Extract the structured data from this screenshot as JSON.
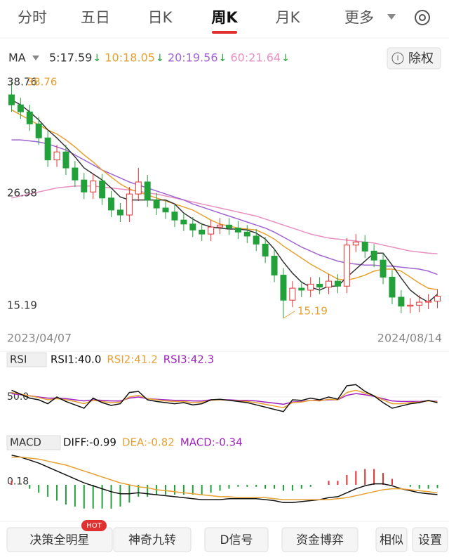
{
  "tabs": {
    "items": [
      "分时",
      "五日",
      "日K",
      "周K",
      "月K",
      "更多"
    ],
    "active": 3
  },
  "ma_legend": {
    "label": "MA",
    "items": [
      {
        "text": "5:17.59",
        "arrow": "↓",
        "color": "#333333"
      },
      {
        "text": "10:18.05",
        "arrow": "↓",
        "color": "#e8a030"
      },
      {
        "text": "20:19.56",
        "arrow": "↓",
        "color": "#a064d2"
      },
      {
        "text": "60:21.64",
        "arrow": "↓",
        "color": "#e890c0"
      }
    ]
  },
  "rights_button": {
    "icon": "i",
    "label": "除权"
  },
  "price_chart": {
    "ylim": [
      15.19,
      38.76
    ],
    "yticks": [
      38.76,
      26.98,
      15.19
    ],
    "high_label": "38.76",
    "low_label": "15.19",
    "dates": [
      "2023/04/07",
      "2024/08/14"
    ],
    "up_color": "#e03030",
    "down_color": "#22a03a",
    "open": [
      37.5,
      36.5,
      35.8,
      34.6,
      33.2,
      31.0,
      31.8,
      30.2,
      29.0,
      27.8,
      28.9,
      27.2,
      26.0,
      25.5,
      27.6,
      28.8,
      27.0,
      26.2,
      25.8,
      25.0,
      24.6,
      24.0,
      23.6,
      24.3,
      24.5,
      24.2,
      23.8,
      23.4,
      22.6,
      21.4,
      19.5,
      17.0,
      18.2,
      18.0,
      18.6,
      18.3,
      18.9,
      18.4,
      22.5,
      22.8,
      21.9,
      21.0,
      19.3,
      17.3,
      16.4,
      16.5,
      16.8,
      16.9
    ],
    "close": [
      36.5,
      35.8,
      34.6,
      33.2,
      31.0,
      31.8,
      30.2,
      29.0,
      27.8,
      28.9,
      27.2,
      26.0,
      25.5,
      27.6,
      28.8,
      27.0,
      26.2,
      25.8,
      25.0,
      24.6,
      24.0,
      23.6,
      24.3,
      24.5,
      24.2,
      23.8,
      23.4,
      22.6,
      21.4,
      19.5,
      17.0,
      18.2,
      18.0,
      18.6,
      18.3,
      18.9,
      18.4,
      22.5,
      22.8,
      21.9,
      21.0,
      19.3,
      17.3,
      16.4,
      16.5,
      16.8,
      16.9,
      17.4
    ],
    "high": [
      38.76,
      37.2,
      36.5,
      35.3,
      33.9,
      32.5,
      32.5,
      30.9,
      29.7,
      29.6,
      29.6,
      27.9,
      26.7,
      28.3,
      30.2,
      29.5,
      27.7,
      26.9,
      26.5,
      25.7,
      25.3,
      24.7,
      25.0,
      25.2,
      25.2,
      24.9,
      24.5,
      24.1,
      23.3,
      22.1,
      20.2,
      18.9,
      18.9,
      19.3,
      19.3,
      19.6,
      19.6,
      23.2,
      23.6,
      23.5,
      22.6,
      21.7,
      20.0,
      18.0,
      17.2,
      17.5,
      17.6,
      18.1
    ],
    "low": [
      35.8,
      35.1,
      33.9,
      32.5,
      30.3,
      30.3,
      29.5,
      28.3,
      27.1,
      27.1,
      26.5,
      25.3,
      24.8,
      24.8,
      26.9,
      26.3,
      25.5,
      25.1,
      24.3,
      23.9,
      23.3,
      22.9,
      22.9,
      23.6,
      23.5,
      23.1,
      22.7,
      21.9,
      20.7,
      18.8,
      15.19,
      16.3,
      17.3,
      17.3,
      17.6,
      17.6,
      17.7,
      17.7,
      21.8,
      21.2,
      20.3,
      18.6,
      16.6,
      15.7,
      15.7,
      15.8,
      16.1,
      16.2
    ],
    "series": [
      {
        "color": "#e890c0",
        "values": [
          27.2,
          27.4,
          27.6,
          27.8,
          28.0,
          28.2,
          28.3,
          28.4,
          28.4,
          28.4,
          28.3,
          28.2,
          28.1,
          28.0,
          27.9,
          27.7,
          27.6,
          27.4,
          27.2,
          27.0,
          26.8,
          26.6,
          26.4,
          26.2,
          26.0,
          25.8,
          25.6,
          25.4,
          25.1,
          24.8,
          24.5,
          24.2,
          23.9,
          23.6,
          23.4,
          23.2,
          23.1,
          23.0,
          22.9,
          22.8,
          22.7,
          22.5,
          22.3,
          22.1,
          21.9,
          21.8,
          21.7,
          21.64
        ]
      },
      {
        "color": "#a064d2",
        "values": [
          33,
          33,
          32.9,
          32.8,
          32.6,
          32.3,
          32.0,
          31.5,
          31.0,
          30.5,
          30.0,
          29.6,
          29.2,
          28.8,
          28.5,
          28.2,
          27.9,
          27.6,
          27.3,
          27.0,
          26.6,
          26.3,
          26.0,
          25.7,
          25.4,
          25.1,
          24.8,
          24.5,
          24.2,
          23.8,
          23.3,
          22.8,
          22.3,
          21.9,
          21.5,
          21.2,
          20.9,
          20.7,
          20.6,
          20.5,
          20.5,
          20.4,
          20.4,
          20.3,
          20.2,
          20.1,
          19.9,
          19.56
        ]
      },
      {
        "color": "#e8a030",
        "values": [
          36,
          35.5,
          35,
          34.5,
          34,
          33.6,
          33.0,
          32.3,
          31.5,
          30.8,
          30.0,
          29.3,
          28.6,
          28.1,
          27.8,
          27.5,
          27.2,
          26.9,
          26.6,
          26.3,
          26.0,
          25.5,
          25.0,
          24.6,
          24.4,
          24.2,
          24.1,
          24.0,
          23.6,
          23.1,
          22.4,
          21.8,
          21.2,
          20.6,
          20.1,
          19.6,
          19.1,
          19.0,
          19.2,
          19.5,
          19.9,
          20.1,
          20.1,
          19.9,
          19.3,
          18.7,
          18.2,
          18.05
        ]
      },
      {
        "color": "#333333",
        "values": [
          37,
          36.5,
          35.8,
          35,
          34,
          33.2,
          32.3,
          31.3,
          30.2,
          29.6,
          29.0,
          28.2,
          27.3,
          27.0,
          27.0,
          27.0,
          27.0,
          27.0,
          26.6,
          25.7,
          25.1,
          24.6,
          24.3,
          24.2,
          24.1,
          24.1,
          24.0,
          23.7,
          23.1,
          22.1,
          20.8,
          19.7,
          18.8,
          18.3,
          18.0,
          18.4,
          18.4,
          19.3,
          20.1,
          20.9,
          21.7,
          21.7,
          20.5,
          19.2,
          18.0,
          17.3,
          16.8,
          17.59
        ]
      }
    ]
  },
  "rsi": {
    "label": "RSI",
    "items": [
      {
        "text": "RSI1:40.0",
        "color": "#111111"
      },
      {
        "text": "RSI2:41.2",
        "color": "#e8a030"
      },
      {
        "text": "RSI3:42.3",
        "color": "#a020c0"
      }
    ],
    "ylim": [
      0,
      100
    ],
    "yticks": [
      {
        "value": 50,
        "label": "50.0"
      }
    ],
    "series": [
      {
        "color": "#a020c0",
        "values": [
          56,
          54,
          52,
          50,
          48,
          48,
          47,
          45,
          43,
          45,
          44,
          43,
          43,
          48,
          50,
          47,
          46,
          45,
          44,
          44,
          43,
          43,
          45,
          45,
          45,
          44,
          44,
          43,
          41,
          39,
          37,
          41,
          42,
          44,
          44,
          45,
          45,
          53,
          56,
          54,
          51,
          47,
          43,
          42,
          42,
          42,
          43,
          42.3
        ]
      },
      {
        "color": "#e8a030",
        "values": [
          58,
          55,
          52,
          49,
          45,
          47,
          45,
          42,
          38,
          44,
          42,
          40,
          41,
          50,
          53,
          47,
          45,
          43,
          42,
          42,
          40,
          41,
          44,
          45,
          44,
          43,
          42,
          40,
          37,
          34,
          31,
          40,
          41,
          44,
          43,
          46,
          45,
          58,
          62,
          57,
          52,
          45,
          38,
          38,
          40,
          41,
          43,
          41.2
        ]
      },
      {
        "color": "#111111",
        "values": [
          62,
          55,
          48,
          45,
          38,
          50,
          42,
          36,
          30,
          48,
          40,
          35,
          38,
          58,
          60,
          45,
          42,
          40,
          38,
          40,
          36,
          38,
          45,
          46,
          44,
          42,
          40,
          36,
          32,
          28,
          24,
          45,
          44,
          48,
          45,
          50,
          46,
          70,
          72,
          60,
          52,
          40,
          30,
          34,
          38,
          40,
          44,
          40
        ]
      }
    ]
  },
  "macd": {
    "label": "MACD",
    "items": [
      {
        "text": "DIFF:-0.99",
        "color": "#111111"
      },
      {
        "text": "DEA:-0.82",
        "color": "#e8a030"
      },
      {
        "text": "MACD:-0.34",
        "color": "#a020c0"
      }
    ],
    "ylim": [
      -3.2,
      3.2
    ],
    "yticks": [
      0.18
    ],
    "diff": [
      3.0,
      2.8,
      2.5,
      2.2,
      1.8,
      1.4,
      1.0,
      0.6,
      0.2,
      -0.1,
      -0.4,
      -0.7,
      -0.9,
      -0.9,
      -0.8,
      -0.9,
      -1.0,
      -1.1,
      -1.2,
      -1.3,
      -1.4,
      -1.5,
      -1.5,
      -1.5,
      -1.4,
      -1.4,
      -1.4,
      -1.4,
      -1.5,
      -1.6,
      -1.8,
      -1.8,
      -1.7,
      -1.6,
      -1.5,
      -1.3,
      -1.2,
      -0.8,
      -0.4,
      -0.1,
      0.1,
      0.1,
      -0.1,
      -0.4,
      -0.6,
      -0.8,
      -0.9,
      -0.99
    ],
    "dea": [
      2.8,
      2.8,
      2.7,
      2.6,
      2.4,
      2.2,
      2.0,
      1.7,
      1.4,
      1.1,
      0.8,
      0.5,
      0.2,
      0.0,
      -0.2,
      -0.3,
      -0.5,
      -0.6,
      -0.7,
      -0.8,
      -0.9,
      -1.0,
      -1.1,
      -1.2,
      -1.2,
      -1.3,
      -1.3,
      -1.3,
      -1.3,
      -1.4,
      -1.5,
      -1.5,
      -1.5,
      -1.5,
      -1.5,
      -1.5,
      -1.4,
      -1.3,
      -1.1,
      -0.9,
      -0.7,
      -0.5,
      -0.4,
      -0.4,
      -0.5,
      -0.6,
      -0.7,
      -0.82
    ],
    "hist": [
      0.4,
      0,
      -0.4,
      -0.8,
      -1.2,
      -1.6,
      -2.0,
      -2.2,
      -2.4,
      -2.4,
      -2.4,
      -2.4,
      -2.2,
      -1.8,
      -1.2,
      -1.2,
      -1.0,
      -1.0,
      -1.0,
      -1.0,
      -1.0,
      -1.0,
      -0.8,
      -0.6,
      -0.4,
      -0.2,
      -0.2,
      -0.2,
      -0.4,
      -0.4,
      -0.6,
      -0.6,
      -0.4,
      -0.2,
      0,
      0.4,
      0.4,
      1.0,
      1.4,
      1.6,
      1.6,
      1.2,
      0.6,
      0,
      -0.2,
      -0.4,
      -0.4,
      -0.34
    ]
  },
  "toolbar": {
    "items": [
      "决策全明星",
      "神奇九转",
      "D信号",
      "资金博弈",
      "相似",
      "设置"
    ],
    "badge": "HOT"
  }
}
